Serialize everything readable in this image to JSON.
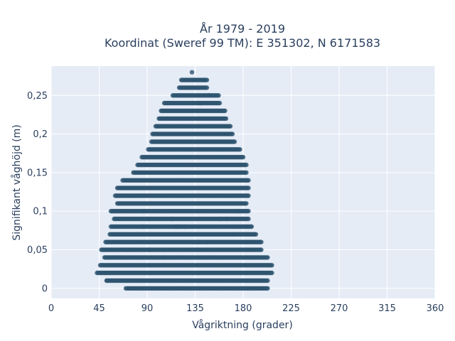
{
  "chart_data": {
    "type": "scatter",
    "title_line1": "År 1979 - 2019",
    "title_line2": "Koordinat (Sweref 99 TM): E 351302, N 6171583",
    "xlabel": "Vågriktning (grader)",
    "ylabel": "Signifikant våghöjd (m)",
    "xlim": [
      0,
      360
    ],
    "ylim": [
      -0.013,
      0.288
    ],
    "x_ticks": [
      0,
      45,
      90,
      135,
      180,
      225,
      270,
      315,
      360
    ],
    "x_tick_labels": [
      "0",
      "45",
      "90",
      "135",
      "180",
      "225",
      "270",
      "315",
      "360"
    ],
    "y_ticks": [
      0,
      0.05,
      0.1,
      0.15,
      0.2,
      0.25
    ],
    "y_tick_labels": [
      "0",
      "0,05",
      "0,1",
      "0,15",
      "0,2",
      "0,25"
    ],
    "grid": true,
    "marker_color": "#2f5570",
    "plot_bg": "#e5ecf6",
    "rows": [
      {
        "y": 0.0,
        "x_min": 70,
        "x_max": 203
      },
      {
        "y": 0.01,
        "x_min": 52,
        "x_max": 203
      },
      {
        "y": 0.02,
        "x_min": 43,
        "x_max": 207
      },
      {
        "y": 0.03,
        "x_min": 46,
        "x_max": 207
      },
      {
        "y": 0.04,
        "x_min": 50,
        "x_max": 203
      },
      {
        "y": 0.05,
        "x_min": 47,
        "x_max": 197
      },
      {
        "y": 0.06,
        "x_min": 51,
        "x_max": 197
      },
      {
        "y": 0.07,
        "x_min": 55,
        "x_max": 192
      },
      {
        "y": 0.08,
        "x_min": 56,
        "x_max": 188
      },
      {
        "y": 0.09,
        "x_min": 59,
        "x_max": 185
      },
      {
        "y": 0.1,
        "x_min": 56,
        "x_max": 185
      },
      {
        "y": 0.11,
        "x_min": 62,
        "x_max": 183
      },
      {
        "y": 0.12,
        "x_min": 60,
        "x_max": 185
      },
      {
        "y": 0.13,
        "x_min": 62,
        "x_max": 185
      },
      {
        "y": 0.14,
        "x_min": 67,
        "x_max": 185
      },
      {
        "y": 0.15,
        "x_min": 77,
        "x_max": 183
      },
      {
        "y": 0.16,
        "x_min": 81,
        "x_max": 183
      },
      {
        "y": 0.17,
        "x_min": 85,
        "x_max": 180
      },
      {
        "y": 0.18,
        "x_min": 91,
        "x_max": 177
      },
      {
        "y": 0.19,
        "x_min": 94,
        "x_max": 172
      },
      {
        "y": 0.2,
        "x_min": 95,
        "x_max": 170
      },
      {
        "y": 0.21,
        "x_min": 98,
        "x_max": 168
      },
      {
        "y": 0.22,
        "x_min": 101,
        "x_max": 164
      },
      {
        "y": 0.23,
        "x_min": 103,
        "x_max": 163
      },
      {
        "y": 0.24,
        "x_min": 106,
        "x_max": 158
      },
      {
        "y": 0.25,
        "x_min": 114,
        "x_max": 157
      },
      {
        "y": 0.26,
        "x_min": 120,
        "x_max": 146
      },
      {
        "y": 0.27,
        "x_min": 122,
        "x_max": 146
      },
      {
        "y": 0.28,
        "x_min": 132,
        "x_max": 132
      }
    ],
    "sparse_points": [
      [
        148,
        0.25
      ],
      [
        143,
        0.27
      ],
      [
        134,
        0.27
      ],
      [
        140,
        0.24
      ],
      [
        87,
        0.1
      ],
      [
        91,
        0.09
      ],
      [
        86,
        0.08
      ],
      [
        97,
        0.07
      ],
      [
        117,
        0.08
      ],
      [
        120,
        0.08
      ],
      [
        125,
        0.08
      ],
      [
        113,
        0.09
      ],
      [
        136,
        0.06
      ],
      [
        136,
        0.05
      ],
      [
        139,
        0.06
      ],
      [
        146,
        0.06
      ],
      [
        165,
        0.09
      ],
      [
        175,
        0.1
      ],
      [
        170,
        0.07
      ],
      [
        158,
        0.09
      ],
      [
        105,
        0.04
      ],
      [
        72,
        0.05
      ],
      [
        92,
        0.05
      ],
      [
        52,
        0.01
      ]
    ]
  }
}
